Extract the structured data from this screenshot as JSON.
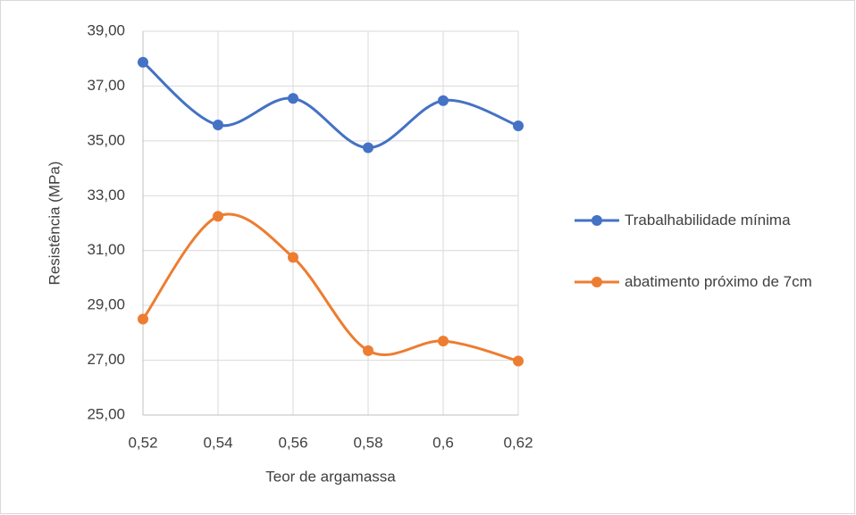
{
  "chart_data": {
    "type": "line",
    "x_label": "Teor de argamassa",
    "y_label": "Resistência (MPa)",
    "x": [
      0.52,
      0.54,
      0.56,
      0.58,
      0.6,
      0.62
    ],
    "series": [
      {
        "name": "Trabalhabilidade mínima",
        "color": "#4472c4",
        "values": [
          37.87,
          35.58,
          36.55,
          34.75,
          36.47,
          35.55
        ]
      },
      {
        "name": "abatimento próximo de 7cm",
        "color": "#ed7d31",
        "values": [
          28.5,
          32.25,
          30.75,
          27.35,
          27.7,
          26.97
        ]
      }
    ],
    "xlim": [
      0.52,
      0.62
    ],
    "xticks": [
      {
        "value": 0.52,
        "label": "0,52"
      },
      {
        "value": 0.54,
        "label": "0,54"
      },
      {
        "value": 0.56,
        "label": "0,56"
      },
      {
        "value": 0.58,
        "label": "0,58"
      },
      {
        "value": 0.6,
        "label": "0,6"
      },
      {
        "value": 0.62,
        "label": "0,62"
      }
    ],
    "ylim": [
      25,
      39
    ],
    "yticks": [
      {
        "value": 25,
        "label": "25,00"
      },
      {
        "value": 27,
        "label": "27,00"
      },
      {
        "value": 29,
        "label": "29,00"
      },
      {
        "value": 31,
        "label": "31,00"
      },
      {
        "value": 33,
        "label": "33,00"
      },
      {
        "value": 35,
        "label": "35,00"
      },
      {
        "value": 37,
        "label": "37,00"
      },
      {
        "value": 39,
        "label": "39,00"
      }
    ],
    "grid": true,
    "smooth": true,
    "legend": "right"
  }
}
